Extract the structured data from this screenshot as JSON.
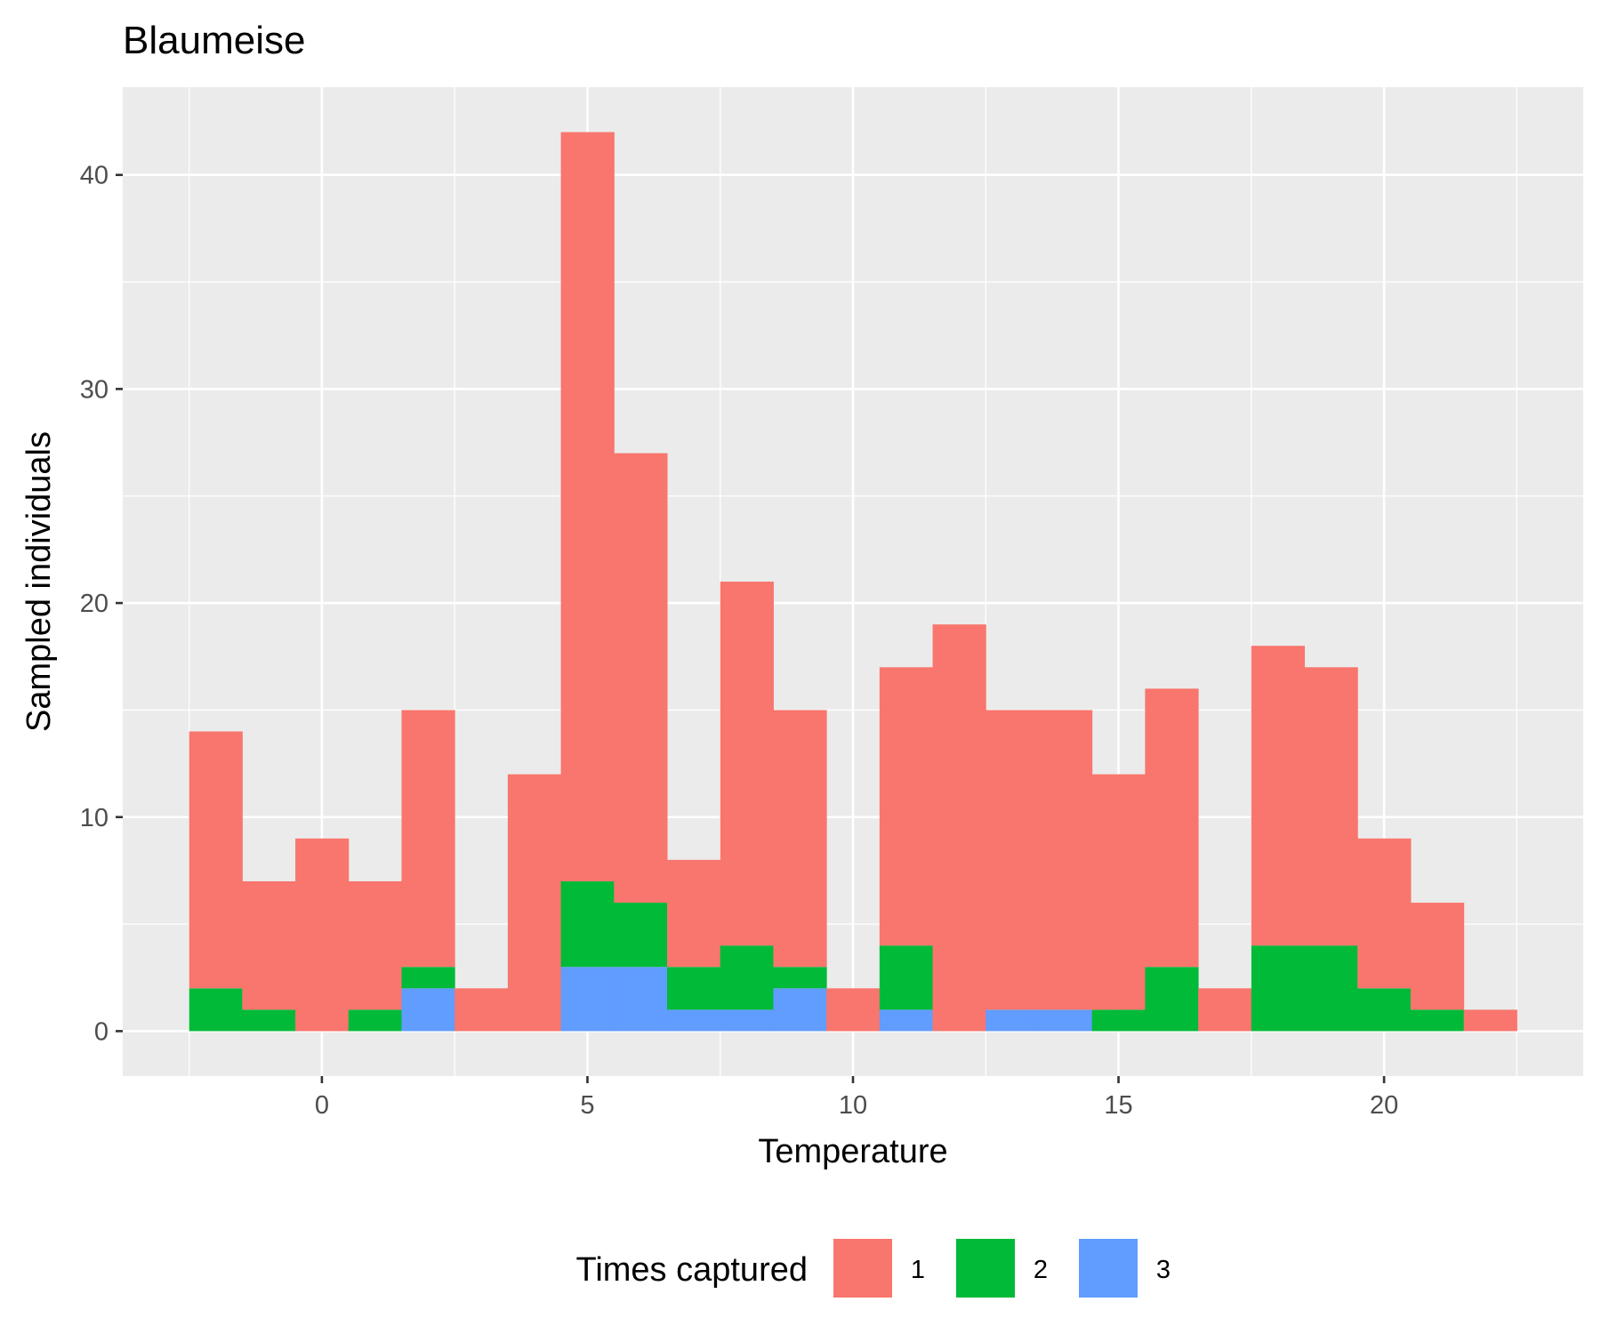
{
  "chart_data": {
    "type": "bar",
    "stacked": true,
    "title": "Blaumeise",
    "xlabel": "Temperature",
    "ylabel": "Sampled individuals",
    "bin_width": 1,
    "x": [
      -2,
      -1,
      0,
      1,
      2,
      3,
      4,
      5,
      6,
      7,
      8,
      9,
      10,
      11,
      12,
      13,
      14,
      15,
      16,
      17,
      18,
      19,
      20,
      21,
      22
    ],
    "series": [
      {
        "name": "3",
        "color": "#619CFF",
        "values": [
          0,
          0,
          0,
          0,
          2,
          0,
          0,
          3,
          3,
          1,
          1,
          2,
          0,
          1,
          0,
          1,
          1,
          0,
          0,
          0,
          0,
          0,
          0,
          0,
          0
        ]
      },
      {
        "name": "2",
        "color": "#00BA38",
        "values": [
          2,
          1,
          0,
          1,
          1,
          0,
          0,
          4,
          3,
          2,
          3,
          1,
          0,
          3,
          0,
          0,
          0,
          1,
          3,
          0,
          4,
          4,
          2,
          1,
          0
        ]
      },
      {
        "name": "1",
        "color": "#F8766D",
        "values": [
          12,
          6,
          9,
          6,
          12,
          2,
          12,
          35,
          21,
          5,
          17,
          12,
          2,
          13,
          19,
          14,
          14,
          11,
          13,
          2,
          14,
          13,
          7,
          5,
          1
        ]
      }
    ],
    "xlim": [
      -3.75,
      23.75
    ],
    "ylim": [
      -2.1,
      44.1
    ],
    "x_ticks": [
      0,
      5,
      10,
      15,
      20
    ],
    "x_tick_labels": [
      "0",
      "5",
      "10",
      "15",
      "20"
    ],
    "y_ticks": [
      0,
      10,
      20,
      30,
      40
    ],
    "y_tick_labels": [
      "0",
      "10",
      "20",
      "30",
      "40"
    ],
    "grid": true,
    "legend": {
      "title": "Times captured",
      "position": "bottom",
      "items": [
        {
          "label": "1",
          "color": "#F8766D"
        },
        {
          "label": "2",
          "color": "#00BA38"
        },
        {
          "label": "3",
          "color": "#619CFF"
        }
      ]
    }
  }
}
